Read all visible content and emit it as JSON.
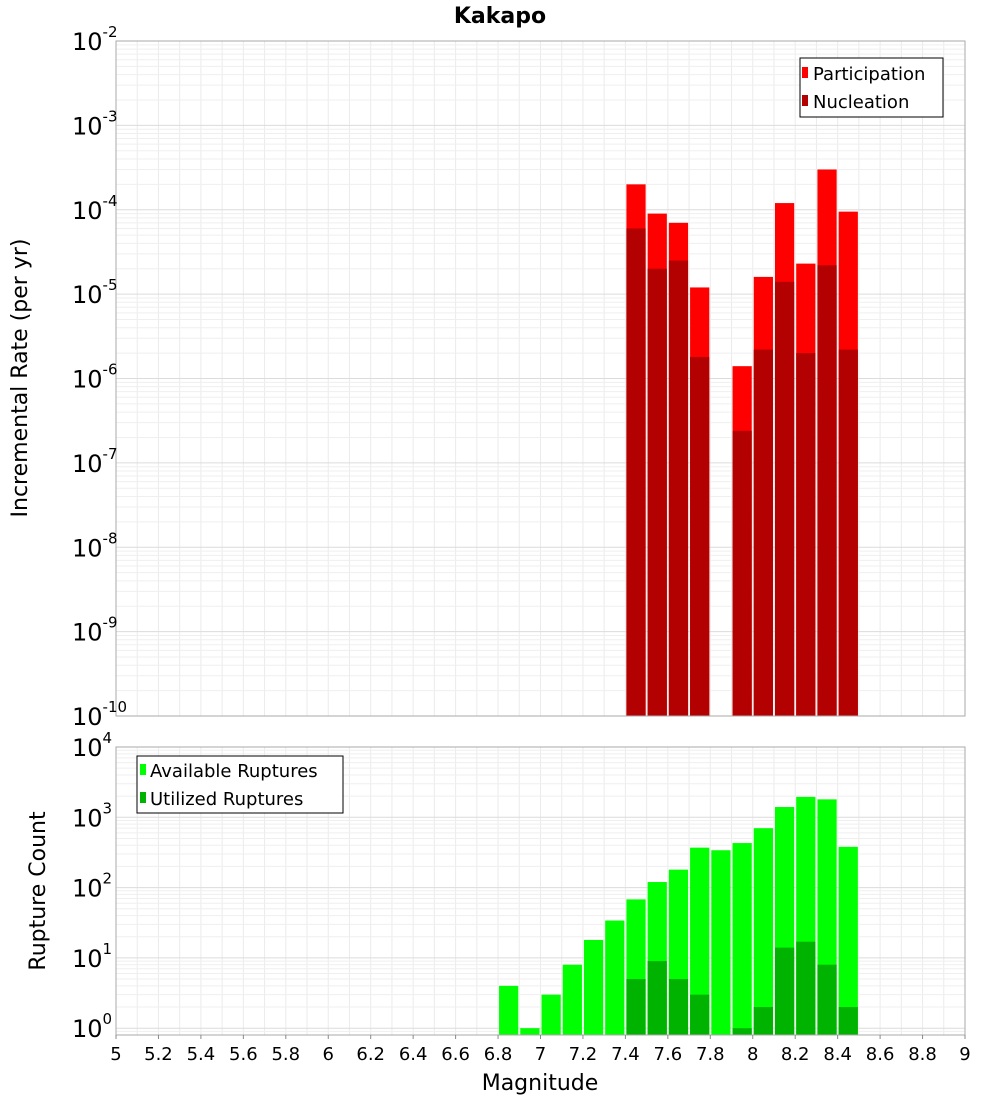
{
  "chart_data": [
    {
      "type": "bar",
      "title": "Kakapo",
      "xlabel": "",
      "ylabel": "Incremental Rate (per yr)",
      "yscale": "log",
      "xlim": [
        5,
        9
      ],
      "ylim": [
        1e-10,
        0.01
      ],
      "grid": true,
      "legend_position": "top-right",
      "bin_width": 0.1,
      "series": [
        {
          "name": "Participation",
          "color": "#ff0000",
          "points": [
            {
              "x": 7.45,
              "y": 0.0002
            },
            {
              "x": 7.55,
              "y": 9e-05
            },
            {
              "x": 7.65,
              "y": 7e-05
            },
            {
              "x": 7.75,
              "y": 1.2e-05
            },
            {
              "x": 7.95,
              "y": 1.4e-06
            },
            {
              "x": 8.05,
              "y": 1.6e-05
            },
            {
              "x": 8.15,
              "y": 0.00012
            },
            {
              "x": 8.25,
              "y": 2.3e-05
            },
            {
              "x": 8.35,
              "y": 0.0003
            },
            {
              "x": 8.45,
              "y": 9.5e-05
            }
          ]
        },
        {
          "name": "Nucleation",
          "color": "#b30000",
          "points": [
            {
              "x": 7.45,
              "y": 6e-05
            },
            {
              "x": 7.55,
              "y": 2e-05
            },
            {
              "x": 7.65,
              "y": 2.5e-05
            },
            {
              "x": 7.75,
              "y": 1.8e-06
            },
            {
              "x": 7.95,
              "y": 2.4e-07
            },
            {
              "x": 8.05,
              "y": 2.2e-06
            },
            {
              "x": 8.15,
              "y": 1.4e-05
            },
            {
              "x": 8.25,
              "y": 2e-06
            },
            {
              "x": 8.35,
              "y": 2.2e-05
            },
            {
              "x": 8.45,
              "y": 2.2e-06
            }
          ]
        }
      ]
    },
    {
      "type": "bar",
      "title": "",
      "xlabel": "Magnitude",
      "ylabel": "Rupture Count",
      "yscale": "log",
      "xlim": [
        5,
        9
      ],
      "ylim": [
        0.8,
        10000.0
      ],
      "grid": true,
      "legend_position": "top-left",
      "bin_width": 0.1,
      "series": [
        {
          "name": "Available Ruptures",
          "color": "#00ff00",
          "points": [
            {
              "x": 6.85,
              "y": 4
            },
            {
              "x": 6.95,
              "y": 1
            },
            {
              "x": 7.05,
              "y": 3
            },
            {
              "x": 7.15,
              "y": 8
            },
            {
              "x": 7.25,
              "y": 18
            },
            {
              "x": 7.35,
              "y": 34
            },
            {
              "x": 7.45,
              "y": 68
            },
            {
              "x": 7.55,
              "y": 120
            },
            {
              "x": 7.65,
              "y": 180
            },
            {
              "x": 7.75,
              "y": 370
            },
            {
              "x": 7.85,
              "y": 340
            },
            {
              "x": 7.95,
              "y": 430
            },
            {
              "x": 8.05,
              "y": 700
            },
            {
              "x": 8.15,
              "y": 1400
            },
            {
              "x": 8.25,
              "y": 1950
            },
            {
              "x": 8.35,
              "y": 1800
            },
            {
              "x": 8.45,
              "y": 380
            }
          ]
        },
        {
          "name": "Utilized Ruptures",
          "color": "#00b300",
          "points": [
            {
              "x": 7.45,
              "y": 5
            },
            {
              "x": 7.55,
              "y": 9
            },
            {
              "x": 7.65,
              "y": 5
            },
            {
              "x": 7.75,
              "y": 3
            },
            {
              "x": 7.95,
              "y": 1
            },
            {
              "x": 8.05,
              "y": 2
            },
            {
              "x": 8.15,
              "y": 14
            },
            {
              "x": 8.25,
              "y": 17
            },
            {
              "x": 8.35,
              "y": 8
            },
            {
              "x": 8.45,
              "y": 2
            }
          ]
        }
      ]
    }
  ],
  "x_ticks": [
    "5",
    "5.2",
    "5.4",
    "5.6",
    "5.8",
    "6",
    "6.2",
    "6.4",
    "6.6",
    "6.8",
    "7",
    "7.2",
    "7.4",
    "7.6",
    "7.8",
    "8",
    "8.2",
    "8.4",
    "8.6",
    "8.8",
    "9"
  ],
  "top_y_ticks": [
    {
      "base": "10",
      "exp": "-2"
    },
    {
      "base": "10",
      "exp": "-3"
    },
    {
      "base": "10",
      "exp": "-4"
    },
    {
      "base": "10",
      "exp": "-5"
    },
    {
      "base": "10",
      "exp": "-6"
    },
    {
      "base": "10",
      "exp": "-7"
    },
    {
      "base": "10",
      "exp": "-8"
    },
    {
      "base": "10",
      "exp": "-9"
    },
    {
      "base": "10",
      "exp": "-10"
    }
  ],
  "bottom_y_ticks": [
    {
      "base": "10",
      "exp": "4"
    },
    {
      "base": "10",
      "exp": "3"
    },
    {
      "base": "10",
      "exp": "2"
    },
    {
      "base": "10",
      "exp": "1"
    },
    {
      "base": "10",
      "exp": "0"
    }
  ]
}
